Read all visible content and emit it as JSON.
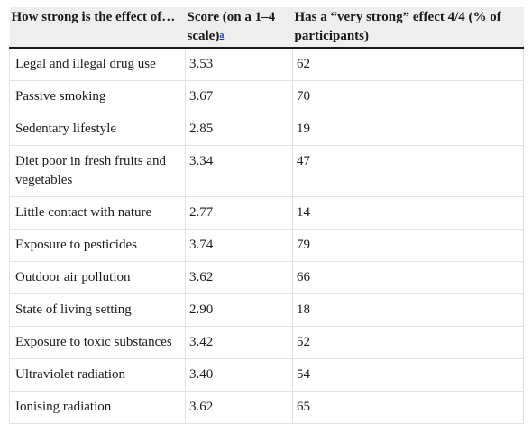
{
  "table": {
    "headers": {
      "col1": "How strong is the effect of…",
      "col2": "Score (on a 1–4 scale)",
      "col2_footnote": "a",
      "col3": "Has a “very strong” effect 4/4 (% of participants)"
    },
    "rows": [
      {
        "factor": "Legal and illegal drug use",
        "score": "3.53",
        "pct": "62"
      },
      {
        "factor": "Passive smoking",
        "score": "3.67",
        "pct": "70"
      },
      {
        "factor": "Sedentary lifestyle",
        "score": "2.85",
        "pct": "19"
      },
      {
        "factor": "Diet poor in fresh fruits and vegetables",
        "score": "3.34",
        "pct": "47"
      },
      {
        "factor": "Little contact with nature",
        "score": "2.77",
        "pct": "14"
      },
      {
        "factor": "Exposure to pesticides",
        "score": "3.74",
        "pct": "79"
      },
      {
        "factor": "Outdoor air pollution",
        "score": "3.62",
        "pct": "66"
      },
      {
        "factor": "State of living setting",
        "score": "2.90",
        "pct": "18"
      },
      {
        "factor": "Exposure to toxic substances",
        "score": "3.42",
        "pct": "52"
      },
      {
        "factor": "Ultraviolet radiation",
        "score": "3.40",
        "pct": "54"
      },
      {
        "factor": "Ionising radiation",
        "score": "3.62",
        "pct": "65"
      }
    ]
  }
}
